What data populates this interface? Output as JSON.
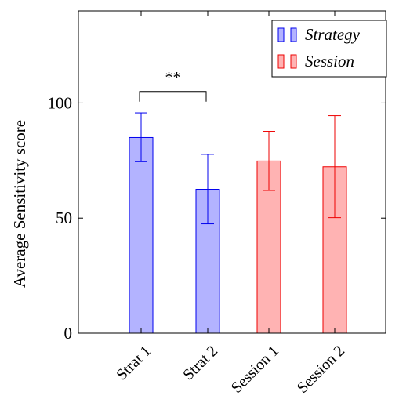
{
  "chart_data": {
    "type": "bar",
    "categories": [
      "Strat 1",
      "Strat 2",
      "Session 1",
      "Session 2"
    ],
    "values": [
      85,
      62.5,
      74.8,
      72.3
    ],
    "error_low": [
      74.5,
      47.5,
      62,
      50.2
    ],
    "error_high": [
      95.7,
      77.7,
      87.7,
      94.5
    ],
    "bar_series": [
      0,
      0,
      1,
      1
    ],
    "series": [
      {
        "name": "Strategy",
        "fill": "#b3b3ff",
        "stroke": "#0000ee"
      },
      {
        "name": "Session",
        "fill": "#ffb3b3",
        "stroke": "#ee0000"
      }
    ],
    "xlabel": "",
    "ylabel": "Average Sensitivity score",
    "ylim": [
      0,
      140
    ],
    "yticks": [
      0,
      50,
      100
    ],
    "ytick_labels": [
      "0",
      "50",
      "100"
    ],
    "grid": false,
    "legend_position": "top-right",
    "significance": {
      "from": "Strat 1",
      "to": "Strat 2",
      "label": "**",
      "level": 105
    }
  }
}
